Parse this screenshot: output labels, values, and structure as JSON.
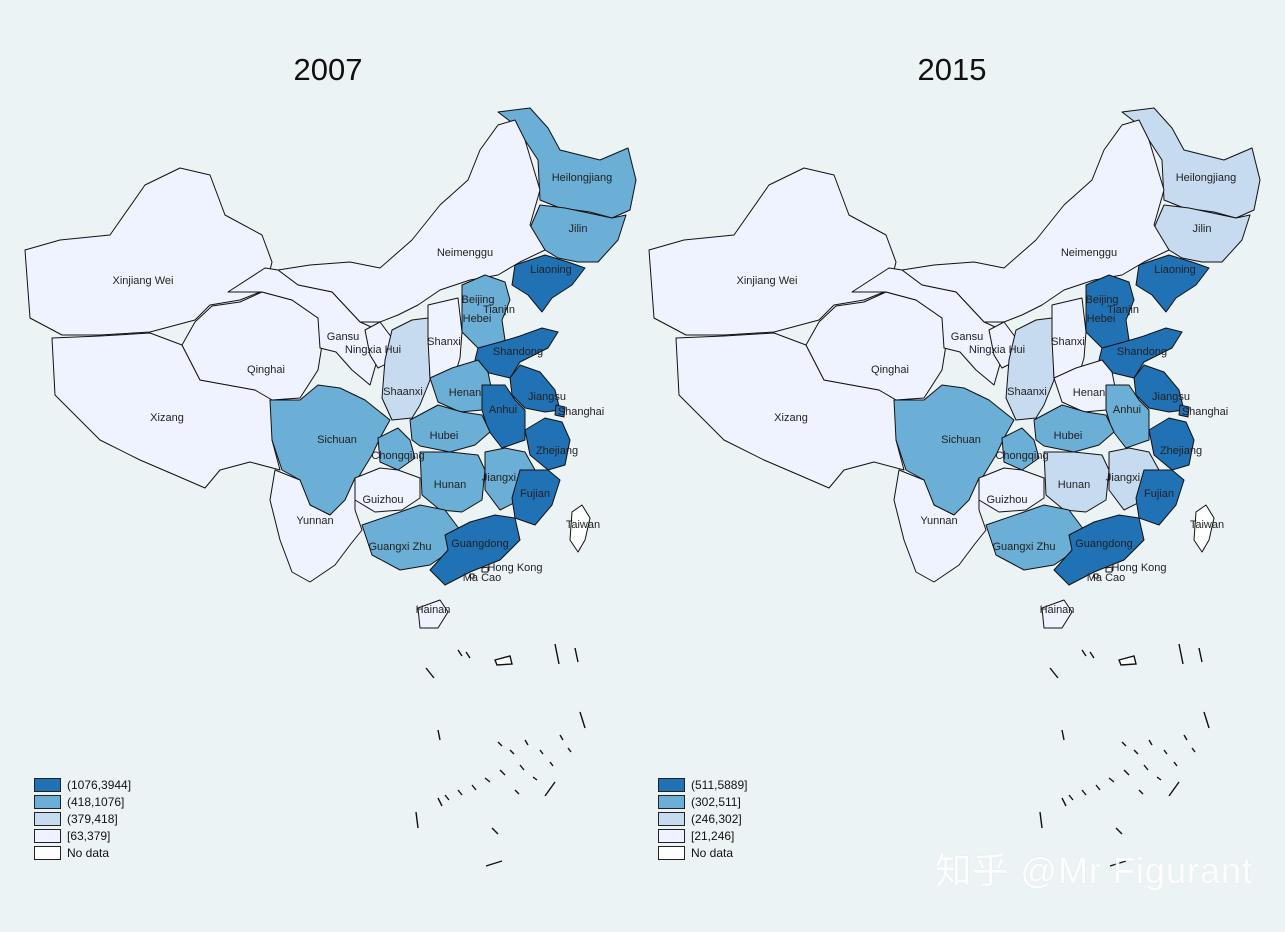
{
  "colors": {
    "bin4": "#2171b5",
    "bin3": "#6baed6",
    "bin2": "#c6dbef",
    "bin1": "#eff3ff",
    "nodata": "#ffffff",
    "border": "#111111"
  },
  "provinces": [
    {
      "id": "heilongjiang",
      "label": "Heilongjiang"
    },
    {
      "id": "jilin",
      "label": "Jilin"
    },
    {
      "id": "liaoning",
      "label": "Liaoning"
    },
    {
      "id": "neimenggu",
      "label": "Neimenggu"
    },
    {
      "id": "xinjiang",
      "label": "Xinjiang Wei"
    },
    {
      "id": "xizang",
      "label": "Xizang"
    },
    {
      "id": "qinghai",
      "label": "Qinghai"
    },
    {
      "id": "gansu",
      "label": "Gansu"
    },
    {
      "id": "ningxia",
      "label": "Ningxia Hui"
    },
    {
      "id": "shaanxi",
      "label": "Shaanxi"
    },
    {
      "id": "shanxi",
      "label": "Shanxi"
    },
    {
      "id": "beijing",
      "label": "Beijing"
    },
    {
      "id": "tianjin",
      "label": "Tianjin"
    },
    {
      "id": "hebei",
      "label": "Hebei"
    },
    {
      "id": "shandong",
      "label": "Shandong"
    },
    {
      "id": "henan",
      "label": "Henan"
    },
    {
      "id": "jiangsu",
      "label": "Jiangsu"
    },
    {
      "id": "shanghai",
      "label": "Shanghai"
    },
    {
      "id": "anhui",
      "label": "Anhui"
    },
    {
      "id": "hubei",
      "label": "Hubei"
    },
    {
      "id": "sichuan",
      "label": "Sichuan"
    },
    {
      "id": "chongqing",
      "label": "Chongqing"
    },
    {
      "id": "zhejiang",
      "label": "Zhejiang"
    },
    {
      "id": "jiangxi",
      "label": "Jiangxi"
    },
    {
      "id": "hunan",
      "label": "Hunan"
    },
    {
      "id": "fujian",
      "label": "Fujian"
    },
    {
      "id": "guizhou",
      "label": "Guizhou"
    },
    {
      "id": "yunnan",
      "label": "Yunnan"
    },
    {
      "id": "guangxi",
      "label": "Guangxi Zhu"
    },
    {
      "id": "guangdong",
      "label": "Guangdong"
    },
    {
      "id": "hongkong",
      "label": "Hong Kong"
    },
    {
      "id": "macao",
      "label": "Ma Cao"
    },
    {
      "id": "taiwan",
      "label": "Taiwan"
    },
    {
      "id": "hainan",
      "label": "Hainan"
    }
  ],
  "maps": [
    {
      "title": "2007",
      "legend": [
        {
          "bin": "bin4",
          "label": "(1076,3944]"
        },
        {
          "bin": "bin3",
          "label": "(418,1076]"
        },
        {
          "bin": "bin2",
          "label": "(379,418]"
        },
        {
          "bin": "bin1",
          "label": "[63,379]"
        },
        {
          "bin": "nodata",
          "label": "No data"
        }
      ],
      "classes": {
        "heilongjiang": "bin3",
        "jilin": "bin3",
        "liaoning": "bin4",
        "neimenggu": "bin1",
        "xinjiang": "bin1",
        "xizang": "bin1",
        "qinghai": "bin1",
        "gansu": "bin1",
        "ningxia": "bin1",
        "shaanxi": "bin2",
        "shanxi": "bin1",
        "beijing": "bin4",
        "tianjin": "bin4",
        "hebei": "bin3",
        "shandong": "bin4",
        "henan": "bin3",
        "jiangsu": "bin4",
        "shanghai": "bin4",
        "anhui": "bin4",
        "hubei": "bin3",
        "sichuan": "bin3",
        "chongqing": "bin3",
        "zhejiang": "bin4",
        "jiangxi": "bin3",
        "hunan": "bin3",
        "fujian": "bin4",
        "guizhou": "bin1",
        "yunnan": "bin1",
        "guangxi": "bin3",
        "guangdong": "bin4",
        "hongkong": "nodata",
        "macao": "nodata",
        "taiwan": "nodata",
        "hainan": "bin1"
      }
    },
    {
      "title": "2015",
      "legend": [
        {
          "bin": "bin4",
          "label": "(511,5889]"
        },
        {
          "bin": "bin3",
          "label": "(302,511]"
        },
        {
          "bin": "bin2",
          "label": "(246,302]"
        },
        {
          "bin": "bin1",
          "label": "[21,246]"
        },
        {
          "bin": "nodata",
          "label": "No data"
        }
      ],
      "classes": {
        "heilongjiang": "bin2",
        "jilin": "bin2",
        "liaoning": "bin4",
        "neimenggu": "bin1",
        "xinjiang": "bin1",
        "xizang": "bin1",
        "qinghai": "bin1",
        "gansu": "bin1",
        "ningxia": "bin1",
        "shaanxi": "bin2",
        "shanxi": "bin1",
        "beijing": "bin4",
        "tianjin": "bin4",
        "hebei": "bin4",
        "shandong": "bin4",
        "henan": "bin1",
        "jiangsu": "bin4",
        "shanghai": "bin4",
        "anhui": "bin3",
        "hubei": "bin3",
        "sichuan": "bin3",
        "chongqing": "bin3",
        "zhejiang": "bin4",
        "jiangxi": "bin2",
        "hunan": "bin2",
        "fujian": "bin4",
        "guizhou": "bin1",
        "yunnan": "bin1",
        "guangxi": "bin3",
        "guangdong": "bin4",
        "hongkong": "nodata",
        "macao": "nodata",
        "taiwan": "nodata",
        "hainan": "bin1"
      }
    }
  ],
  "watermark": "知乎 @Mr Figurant"
}
